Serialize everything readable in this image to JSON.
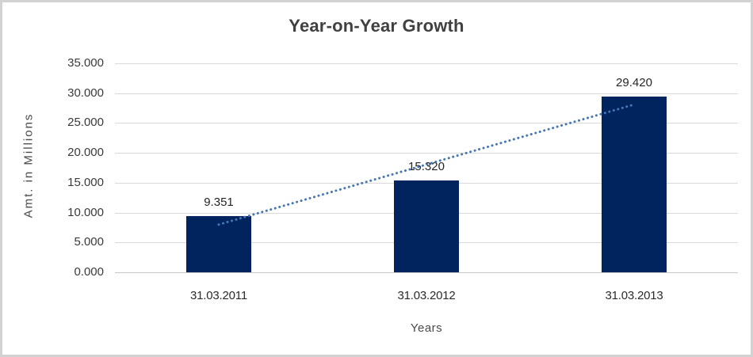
{
  "frame": {
    "background": "#ffffff",
    "border_color": "#d2d2d2"
  },
  "chart_data": {
    "type": "bar",
    "title": "Year-on-Year Growth",
    "xlabel": "Years",
    "ylabel": "Amt. in Millions",
    "categories": [
      "31.03.2011",
      "31.03.2012",
      "31.03.2013"
    ],
    "values": [
      9.351,
      15.32,
      29.42
    ],
    "value_labels": [
      "9.351",
      "15.320",
      "29.420"
    ],
    "ylim": [
      0,
      35
    ],
    "ytick_step": 5,
    "ytick_labels": [
      "0.000",
      "5.000",
      "10.000",
      "15.000",
      "20.000",
      "25.000",
      "30.000",
      "35.000"
    ],
    "grid": true,
    "legend": "none",
    "bar_color": "#02245e",
    "grid_color": "#d9d9d9",
    "label_color": "#262626",
    "title_color": "#404040",
    "trendline": {
      "type": "linear",
      "style": "dotted",
      "color": "#4576b5",
      "start_value": 8.0,
      "end_value": 28.1
    }
  }
}
